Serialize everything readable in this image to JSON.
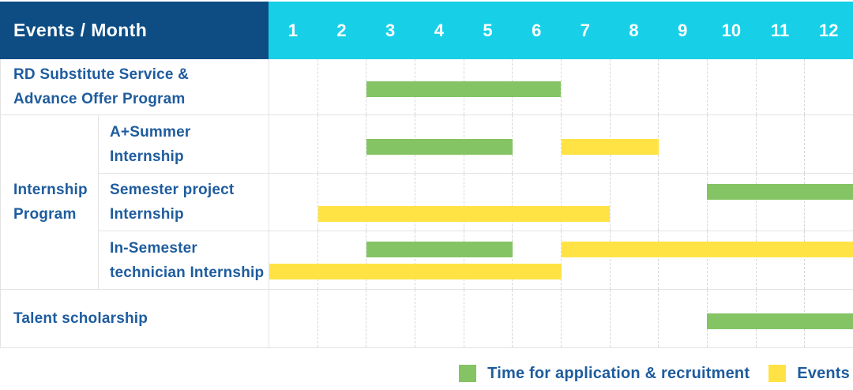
{
  "header": {
    "title": "Events / Month",
    "months": [
      "1",
      "2",
      "3",
      "4",
      "5",
      "6",
      "7",
      "8",
      "9",
      "10",
      "11",
      "12"
    ]
  },
  "colors": {
    "header_bg": "#0E4D83",
    "months_bg": "#17D0E8",
    "green": "#85C464",
    "yellow": "#FFE345",
    "label_text": "#1E5C9E",
    "header_text": "#FFFFFF"
  },
  "legend": {
    "items": [
      {
        "label": "Time for application & recruitment",
        "color_key": "green"
      },
      {
        "label": "Events",
        "color_key": "yellow"
      }
    ]
  },
  "chart_data": {
    "type": "gantt",
    "x_unit": "month",
    "x_range": [
      1,
      12
    ],
    "grid": "dashed-vertical",
    "legend_position": "bottom-right",
    "bar_meaning": {
      "green": "Time for application & recruitment",
      "yellow": "Events"
    },
    "rows": [
      {
        "group": null,
        "label": "RD Substitute Service & Advance Offer Program",
        "label_lines": [
          "RD Substitute Service &",
          "Advance Offer Program"
        ],
        "bars": [
          {
            "color": "green",
            "start_month": 3,
            "end_month": 6,
            "lane": "mid"
          }
        ]
      },
      {
        "group": "Internship Program",
        "label": "A+Summer Internship",
        "label_lines": [
          "A+Summer",
          "Internship"
        ],
        "bars": [
          {
            "color": "green",
            "start_month": 3,
            "end_month": 5,
            "lane": "mid"
          },
          {
            "color": "yellow",
            "start_month": 7,
            "end_month": 8,
            "lane": "mid"
          }
        ]
      },
      {
        "group": "Internship Program",
        "label": "Semester project Internship",
        "label_lines": [
          "Semester project",
          "Internship"
        ],
        "bars": [
          {
            "color": "green",
            "start_month": 10,
            "end_month": 12,
            "lane": "top"
          },
          {
            "color": "yellow",
            "start_month": 2,
            "end_month": 7,
            "lane": "bottom"
          }
        ]
      },
      {
        "group": "Internship Program",
        "label": "In-Semester technician Internship",
        "label_lines": [
          "In-Semester",
          "technician Internship"
        ],
        "bars": [
          {
            "color": "green",
            "start_month": 3,
            "end_month": 5,
            "lane": "top"
          },
          {
            "color": "yellow",
            "start_month": 7,
            "end_month": 12,
            "lane": "top"
          },
          {
            "color": "yellow",
            "start_month": 1,
            "end_month": 6,
            "lane": "bottom"
          }
        ]
      },
      {
        "group": null,
        "label": "Talent scholarship",
        "label_lines": [
          "Talent scholarship"
        ],
        "bars": [
          {
            "color": "green",
            "start_month": 10,
            "end_month": 12,
            "lane": "mid"
          }
        ]
      }
    ],
    "group_label_lines": [
      "Internship",
      "Program"
    ]
  }
}
